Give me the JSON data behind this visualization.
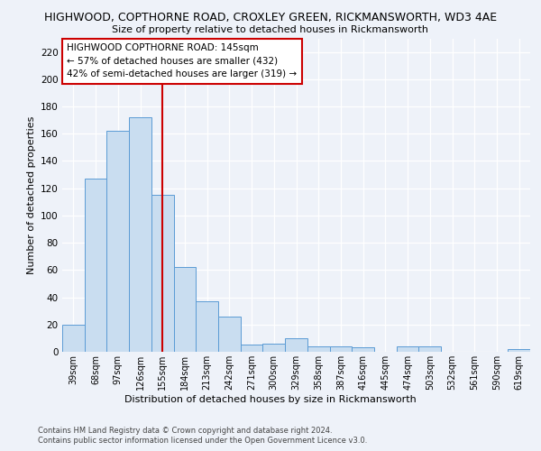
{
  "title_line1": "HIGHWOOD, COPTHORNE ROAD, CROXLEY GREEN, RICKMANSWORTH, WD3 4AE",
  "title_line2": "Size of property relative to detached houses in Rickmansworth",
  "xlabel": "Distribution of detached houses by size in Rickmansworth",
  "ylabel": "Number of detached properties",
  "categories": [
    "39sqm",
    "68sqm",
    "97sqm",
    "126sqm",
    "155sqm",
    "184sqm",
    "213sqm",
    "242sqm",
    "271sqm",
    "300sqm",
    "329sqm",
    "358sqm",
    "387sqm",
    "416sqm",
    "445sqm",
    "474sqm",
    "503sqm",
    "532sqm",
    "561sqm",
    "590sqm",
    "619sqm"
  ],
  "values": [
    20,
    127,
    162,
    172,
    115,
    62,
    37,
    26,
    5,
    6,
    10,
    4,
    4,
    3,
    0,
    4,
    4,
    0,
    0,
    0,
    2
  ],
  "bar_color": "#c9ddf0",
  "bar_edge_color": "#5b9bd5",
  "vline_x": 4.0,
  "vline_color": "#cc0000",
  "annotation_title": "HIGHWOOD COPTHORNE ROAD: 145sqm",
  "annotation_line2": "← 57% of detached houses are smaller (432)",
  "annotation_line3": "42% of semi-detached houses are larger (319) →",
  "annotation_box_color": "#ffffff",
  "annotation_box_edge": "#cc0000",
  "ylim": [
    0,
    230
  ],
  "yticks": [
    0,
    20,
    40,
    60,
    80,
    100,
    120,
    140,
    160,
    180,
    200,
    220
  ],
  "footer_line1": "Contains HM Land Registry data © Crown copyright and database right 2024.",
  "footer_line2": "Contains public sector information licensed under the Open Government Licence v3.0.",
  "bg_color": "#eef2f9",
  "plot_bg_color": "#eef2f9",
  "grid_color": "#ffffff"
}
